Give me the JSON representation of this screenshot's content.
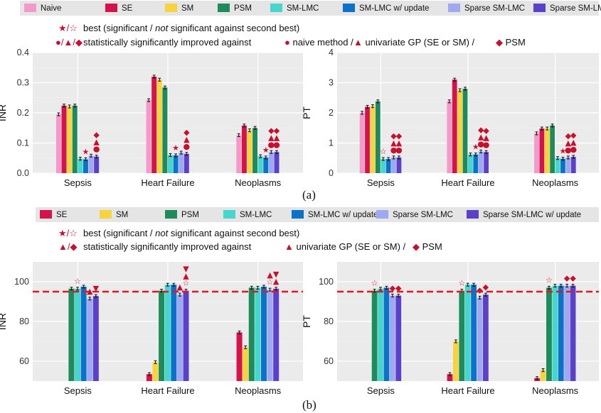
{
  "colors": {
    "Naive": "#F29BCB",
    "SE": "#D4124B",
    "SM": "#F7D43E",
    "PSM": "#1F8A5B",
    "SM-LMC": "#47D6CC",
    "SM-LMC w/ update": "#0A73C9",
    "Sparse SM-LMC": "#9FA9F2",
    "Sparse SM-LMC w/ update": "#5B41C9"
  },
  "legend_a": [
    "Naive",
    "SE",
    "SM",
    "PSM",
    "SM-LMC",
    "SM-LMC w/ update",
    "Sparse SM-LMC",
    "Sparse SM-LMC w/ update"
  ],
  "legend_b": [
    "SE",
    "SM",
    "PSM",
    "SM-LMC",
    "SM-LMC w/ update",
    "Sparse SM-LMC",
    "Sparse SM-LMC w/ update"
  ],
  "annot_a": {
    "best_sym": "★/☆",
    "best_text": "best (significant / ",
    "best_not": "not",
    "best_text2": " significant against second best)",
    "sig_sym": "●/▲/◆",
    "sig_text": "statistically significantly improved against",
    "sig_naive": "naive method /",
    "sig_uni": "univariate GP (SE or SM) /",
    "sig_psm": "PSM"
  },
  "annot_b": {
    "best_sym": "★/☆",
    "best_text": "best (significant / ",
    "best_not": "not",
    "best_text2": " significant against second best)",
    "sig_sym": "▲/◆",
    "sig_text": "statistically significantly improved against",
    "sig_uni": "univariate GP (SE or SM) /",
    "sig_psm": "PSM"
  },
  "captions": {
    "a": "(a)",
    "b": "(b)"
  },
  "chart_data": [
    {
      "type": "bar",
      "panel": "a-left",
      "ylabel": "INR",
      "ylim": [
        0,
        0.4
      ],
      "yticks": [
        "0.0",
        "0.1",
        "0.2",
        "0.3",
        "0.4"
      ],
      "categories": [
        "Sepsis",
        "Heart Failure",
        "Neoplasms"
      ],
      "series": [
        {
          "name": "Naive",
          "values": [
            0.195,
            0.242,
            0.126
          ]
        },
        {
          "name": "SE",
          "values": [
            0.224,
            0.32,
            0.158
          ]
        },
        {
          "name": "SM",
          "values": [
            0.221,
            0.31,
            0.142
          ]
        },
        {
          "name": "PSM",
          "values": [
            0.224,
            0.284,
            0.15
          ]
        },
        {
          "name": "SM-LMC",
          "values": [
            0.048,
            0.06,
            0.056
          ]
        },
        {
          "name": "SM-LMC w/ update",
          "values": [
            0.046,
            0.059,
            0.052
          ]
        },
        {
          "name": "Sparse SM-LMC",
          "values": [
            0.058,
            0.068,
            0.07
          ]
        },
        {
          "name": "Sparse SM-LMC w/ update",
          "values": [
            0.055,
            0.064,
            0.07
          ]
        }
      ],
      "markers": [
        [
          "",
          "",
          "",
          "",
          "",
          "★",
          "",
          "●▲◆"
        ],
        [
          "",
          "",
          "",
          "",
          "",
          "★",
          "",
          "●▲◆"
        ],
        [
          "",
          "",
          "",
          "",
          "",
          "★",
          "●▲◆",
          "●▲◆"
        ]
      ]
    },
    {
      "type": "bar",
      "panel": "a-right",
      "ylabel": "PT",
      "ylim": [
        0,
        4
      ],
      "yticks": [
        "0",
        "1",
        "2",
        "3",
        "4"
      ],
      "categories": [
        "Sepsis",
        "Heart Failure",
        "Neoplasms"
      ],
      "series": [
        {
          "name": "Naive",
          "values": [
            2.0,
            2.38,
            1.32
          ]
        },
        {
          "name": "SE",
          "values": [
            2.2,
            3.1,
            1.48
          ]
        },
        {
          "name": "SM",
          "values": [
            2.22,
            2.75,
            1.48
          ]
        },
        {
          "name": "PSM",
          "values": [
            2.38,
            2.8,
            1.58
          ]
        },
        {
          "name": "SM-LMC",
          "values": [
            0.47,
            0.62,
            0.5
          ]
        },
        {
          "name": "SM-LMC w/ update",
          "values": [
            0.47,
            0.62,
            0.48
          ]
        },
        {
          "name": "Sparse SM-LMC",
          "values": [
            0.52,
            0.72,
            0.52
          ]
        },
        {
          "name": "Sparse SM-LMC w/ update",
          "values": [
            0.52,
            0.7,
            0.54
          ]
        }
      ],
      "markers": [
        [
          "",
          "",
          "",
          "",
          "☆",
          "",
          "●▲◆",
          "●▲◆"
        ],
        [
          "",
          "",
          "",
          "",
          "",
          "★",
          "●▲◆",
          "●▲◆"
        ],
        [
          "",
          "",
          "",
          "",
          "",
          "★",
          "●▲◆",
          "●▲◆"
        ]
      ]
    },
    {
      "type": "bar",
      "panel": "b-left",
      "ylabel": "INR",
      "ylim": [
        50,
        110
      ],
      "yticks": [
        "60",
        "80",
        "100"
      ],
      "reference_line": 95,
      "categories": [
        "Sepsis",
        "Heart Failure",
        "Neoplasms"
      ],
      "series": [
        {
          "name": "SE",
          "values": [
            null,
            53.5,
            74.5
          ]
        },
        {
          "name": "SM",
          "values": [
            null,
            59.5,
            67.0
          ]
        },
        {
          "name": "PSM",
          "values": [
            96.5,
            95.5,
            97.0
          ]
        },
        {
          "name": "SM-LMC",
          "values": [
            96.5,
            98.5,
            97.0
          ]
        },
        {
          "name": "SM-LMC w/ update",
          "values": [
            97.5,
            98.5,
            97.5
          ]
        },
        {
          "name": "Sparse SM-LMC",
          "values": [
            91.5,
            93.5,
            96.0
          ]
        },
        {
          "name": "Sparse SM-LMC w/ update",
          "values": [
            92.8,
            95.5,
            96.5
          ]
        }
      ],
      "markers": [
        [
          "",
          "",
          "",
          "☆",
          "",
          "▲",
          "▼"
        ],
        [
          "",
          "",
          "",
          "",
          "",
          "▲",
          "☆▲▼"
        ],
        [
          "",
          "",
          "",
          "",
          "",
          "☆▲",
          "▲▼"
        ]
      ]
    },
    {
      "type": "bar",
      "panel": "b-right",
      "ylabel": "PT",
      "ylim": [
        50,
        110
      ],
      "yticks": [
        "60",
        "80",
        "100"
      ],
      "reference_line": 95,
      "categories": [
        "Sepsis",
        "Heart Failure",
        "Neoplasms"
      ],
      "series": [
        {
          "name": "SE",
          "values": [
            null,
            53.5,
            51.5
          ]
        },
        {
          "name": "SM",
          "values": [
            null,
            70.0,
            55.5
          ]
        },
        {
          "name": "PSM",
          "values": [
            95.5,
            95.5,
            97.0
          ]
        },
        {
          "name": "SM-LMC",
          "values": [
            96.5,
            98.5,
            98.0
          ]
        },
        {
          "name": "SM-LMC w/ update",
          "values": [
            97.0,
            98.5,
            98.0
          ]
        },
        {
          "name": "Sparse SM-LMC",
          "values": [
            93.0,
            92.0,
            98.0
          ]
        },
        {
          "name": "Sparse SM-LMC w/ update",
          "values": [
            93.0,
            93.5,
            98.0
          ]
        }
      ],
      "markers": [
        [
          "",
          "",
          "☆",
          "",
          "",
          "◆",
          "◆"
        ],
        [
          "",
          "",
          "☆",
          "",
          "",
          "◆",
          "◆"
        ],
        [
          "",
          "",
          "☆",
          "",
          "",
          "◆",
          "◆"
        ]
      ]
    }
  ]
}
